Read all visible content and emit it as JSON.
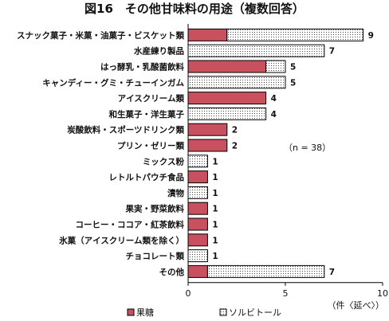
{
  "chart_data": {
    "type": "bar",
    "orientation": "horizontal",
    "stacked": true,
    "title": "図16　その他甘味料の用途（複数回答）",
    "categories": [
      "スナック菓子・米菓・油菓子・ビスケット類",
      "水産練り製品",
      "はっ酵乳・乳酸菌飲料",
      "キャンディー・グミ・チューインガム",
      "アイスクリーム類",
      "和生菓子・洋生菓子",
      "炭酸飲料・スポーツドリンク類",
      "プリン・ゼリー類",
      "ミックス粉",
      "レトルトパウチ食品",
      "漬物",
      "果実・野菜飲料",
      "コーヒー・ココア・紅茶飲料",
      "氷菓（アイスクリーム類を除く）",
      "チョコレート類",
      "その他"
    ],
    "series": [
      {
        "name": "果糖",
        "color": "#c9505e",
        "pattern": "solid",
        "values": [
          2,
          0,
          4,
          0,
          4,
          0,
          2,
          2,
          0,
          1,
          0,
          1,
          1,
          1,
          0,
          1
        ]
      },
      {
        "name": "ソルビトール",
        "color": "#ffffff",
        "pattern": "dotted",
        "values": [
          7,
          7,
          1,
          5,
          0,
          4,
          0,
          0,
          1,
          0,
          1,
          0,
          0,
          0,
          1,
          6
        ]
      }
    ],
    "totals": [
      "9",
      "7",
      "5",
      "5",
      "4",
      "4",
      "2",
      "2",
      "1",
      "1",
      "1",
      "1",
      "1",
      "1",
      "1",
      "7"
    ],
    "xlim": [
      0,
      10
    ],
    "xticks": [
      "0",
      "5",
      "10"
    ],
    "xlabel": "（件〈延べ〉）",
    "annotation": "（n = 38）",
    "grid": false,
    "legend_position": "bottom"
  },
  "colors": {
    "fructose": "#c9505e",
    "sorbitol_dot": "#444444",
    "axis": "#000000"
  }
}
